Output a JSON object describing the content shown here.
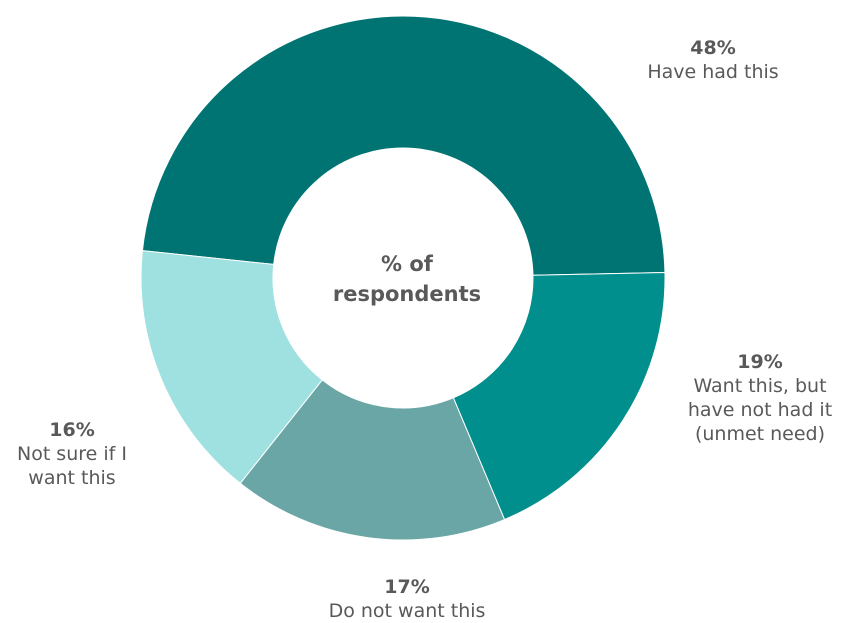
{
  "chart_data": {
    "type": "pie",
    "donut": true,
    "center_label": "% of\nrespondents",
    "slices": [
      {
        "name": "Have had this",
        "value": 48,
        "pct_label": "48%",
        "color": "#007472"
      },
      {
        "name": "Want this, but\nhave not had it\n(unmet need)",
        "value": 19,
        "pct_label": "19%",
        "color": "#008F8C"
      },
      {
        "name": "Do not want this",
        "value": 17,
        "pct_label": "17%",
        "color": "#6AA6A6"
      },
      {
        "name": "Not sure if I\nwant this",
        "value": 16,
        "pct_label": "16%",
        "color": "#9FE1E0"
      }
    ]
  }
}
